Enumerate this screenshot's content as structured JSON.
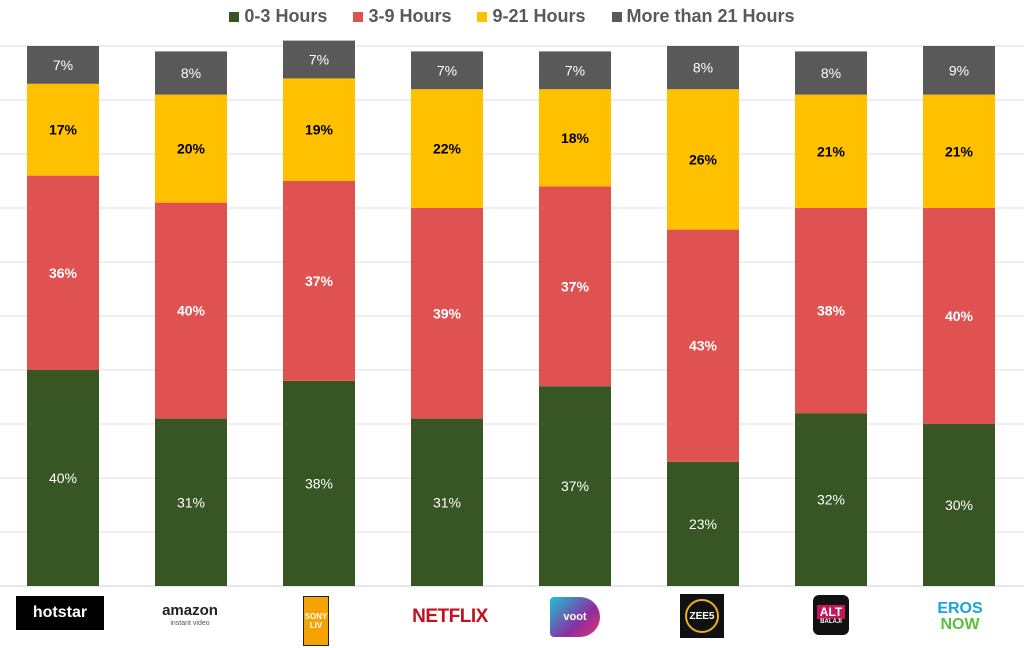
{
  "chart_data": {
    "type": "bar",
    "stacked": true,
    "categories": [
      "hotstar",
      "amazon instant video",
      "SONY LIV",
      "NETFLIX",
      "voot",
      "ZEE5",
      "ALT BALAJI",
      "EROS NOW"
    ],
    "series": [
      {
        "name": "0-3 Hours",
        "color": "#375623",
        "values": [
          40,
          31,
          38,
          31,
          37,
          23,
          32,
          30
        ]
      },
      {
        "name": "3-9 Hours",
        "color": "#e05252",
        "values": [
          36,
          40,
          37,
          39,
          37,
          43,
          38,
          40
        ]
      },
      {
        "name": "9-21 Hours",
        "color": "#ffc000",
        "values": [
          17,
          20,
          19,
          22,
          18,
          26,
          21,
          21
        ]
      },
      {
        "name": "More than 21 Hours",
        "color": "#595959",
        "values": [
          7,
          8,
          7,
          7,
          7,
          8,
          8,
          9
        ]
      }
    ],
    "value_format": "percent",
    "ylim": [
      0,
      100
    ],
    "grid": true,
    "legend": "top",
    "xlabel": "",
    "ylabel": ""
  }
}
